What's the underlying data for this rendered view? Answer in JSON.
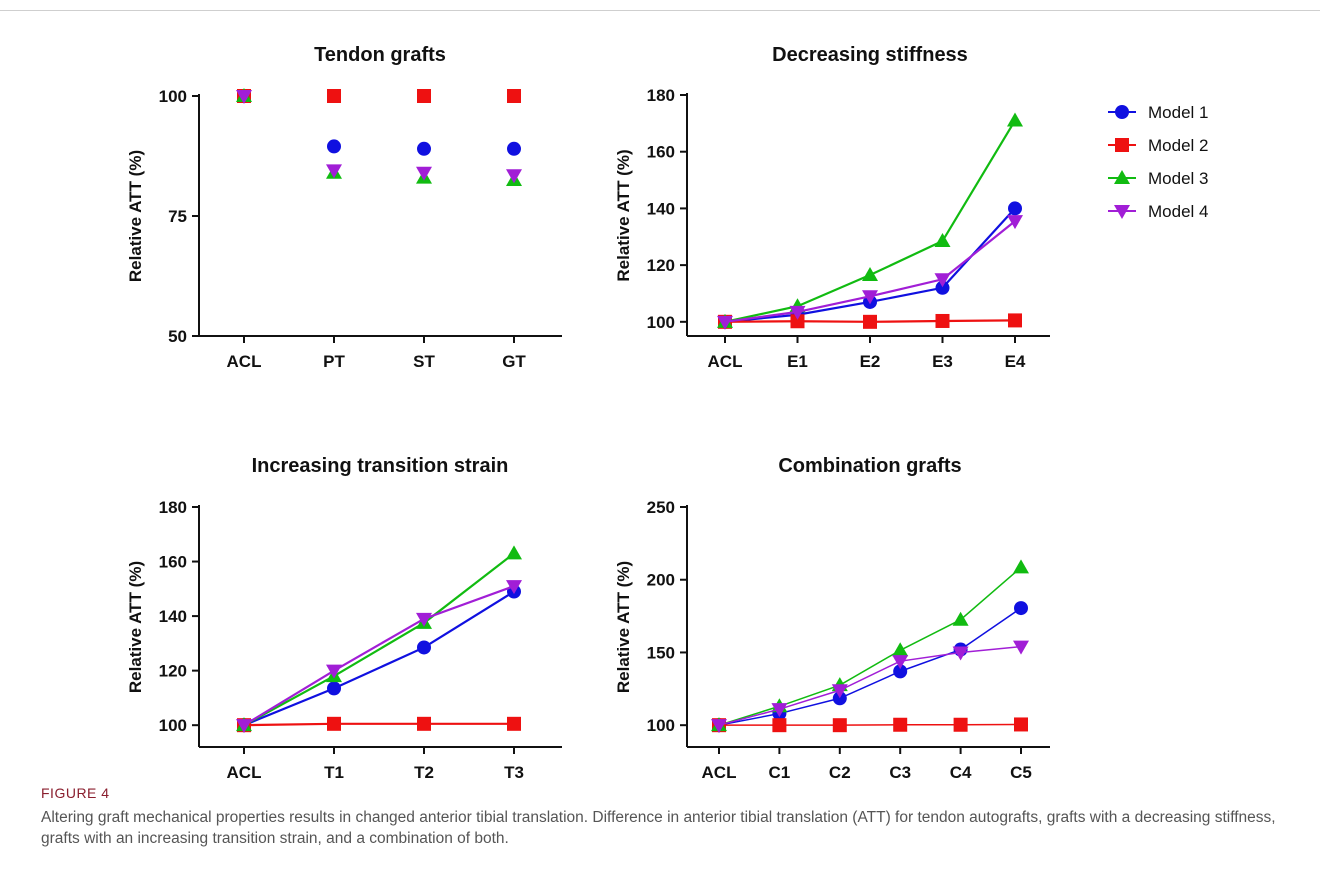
{
  "figure": {
    "label": "FIGURE 4",
    "caption": "Altering graft mechanical properties results in changed anterior tibial translation. Difference in anterior tibial translation (ATT) for tendon autografts, grafts with a decreasing stiffness, grafts with an increasing transition strain, and a combination of both."
  },
  "legend": {
    "placement": "right",
    "items": [
      {
        "name": "Model 1",
        "color": "#1010e0",
        "marker": "circle"
      },
      {
        "name": "Model 2",
        "color": "#ee1111",
        "marker": "square"
      },
      {
        "name": "Model 3",
        "color": "#11bb11",
        "marker": "triangle-up"
      },
      {
        "name": "Model 4",
        "color": "#a11ed6",
        "marker": "triangle-down"
      }
    ]
  },
  "chart_data": [
    {
      "type": "scatter",
      "title": "Tendon grafts",
      "ylabel": "Relative ATT (%)",
      "xlabel": "",
      "categories": [
        "ACL",
        "PT",
        "ST",
        "GT"
      ],
      "ylim": [
        50,
        100
      ],
      "yticks": [
        50,
        75,
        100
      ],
      "lines": false,
      "series": [
        {
          "name": "Model 1",
          "values": [
            100,
            89.5,
            89,
            89
          ]
        },
        {
          "name": "Model 2",
          "values": [
            100,
            100,
            100,
            100
          ]
        },
        {
          "name": "Model 3",
          "values": [
            100,
            84,
            83,
            82.5
          ]
        },
        {
          "name": "Model 4",
          "values": [
            100,
            84.5,
            84,
            83.5
          ]
        }
      ]
    },
    {
      "type": "line",
      "title": "Decreasing stiffness",
      "ylabel": "Relative ATT (%)",
      "xlabel": "",
      "categories": [
        "ACL",
        "E1",
        "E2",
        "E3",
        "E4"
      ],
      "ylim": [
        95,
        180
      ],
      "yticks": [
        100,
        120,
        140,
        160,
        180
      ],
      "lines": true,
      "series": [
        {
          "name": "Model 1",
          "values": [
            100,
            102.5,
            107,
            112,
            140
          ]
        },
        {
          "name": "Model 2",
          "values": [
            100,
            100.2,
            100,
            100.3,
            100.5
          ]
        },
        {
          "name": "Model 3",
          "values": [
            100,
            105.5,
            116.5,
            128.5,
            171
          ]
        },
        {
          "name": "Model 4",
          "values": [
            100,
            103.5,
            109,
            115,
            135.5
          ]
        }
      ]
    },
    {
      "type": "line",
      "title": "Increasing transition strain",
      "ylabel": "Relative ATT (%)",
      "xlabel": "",
      "categories": [
        "ACL",
        "T1",
        "T2",
        "T3"
      ],
      "ylim": [
        92,
        180
      ],
      "yticks": [
        100,
        120,
        140,
        160,
        180
      ],
      "lines": true,
      "series": [
        {
          "name": "Model 1",
          "values": [
            100,
            113.5,
            128.5,
            149
          ]
        },
        {
          "name": "Model 2",
          "values": [
            100,
            100.5,
            100.5,
            100.5
          ]
        },
        {
          "name": "Model 3",
          "values": [
            100,
            118,
            137.5,
            163
          ]
        },
        {
          "name": "Model 4",
          "values": [
            100,
            120,
            139,
            151
          ]
        }
      ]
    },
    {
      "type": "line",
      "title": "Combination grafts",
      "ylabel": "Relative ATT (%)",
      "xlabel": "",
      "categories": [
        "ACL",
        "C1",
        "C2",
        "C3",
        "C4",
        "C5"
      ],
      "ylim": [
        85,
        250
      ],
      "yticks": [
        100,
        150,
        200,
        250
      ],
      "lines": true,
      "series": [
        {
          "name": "Model 1",
          "values": [
            100,
            108,
            118.5,
            137,
            152,
            180.5
          ]
        },
        {
          "name": "Model 2",
          "values": [
            100,
            100,
            100,
            100.3,
            100.3,
            100.5
          ]
        },
        {
          "name": "Model 3",
          "values": [
            100,
            113,
            127.5,
            151.5,
            172.5,
            208.5
          ]
        },
        {
          "name": "Model 4",
          "values": [
            100,
            111,
            124,
            144,
            150,
            154
          ]
        }
      ]
    }
  ]
}
